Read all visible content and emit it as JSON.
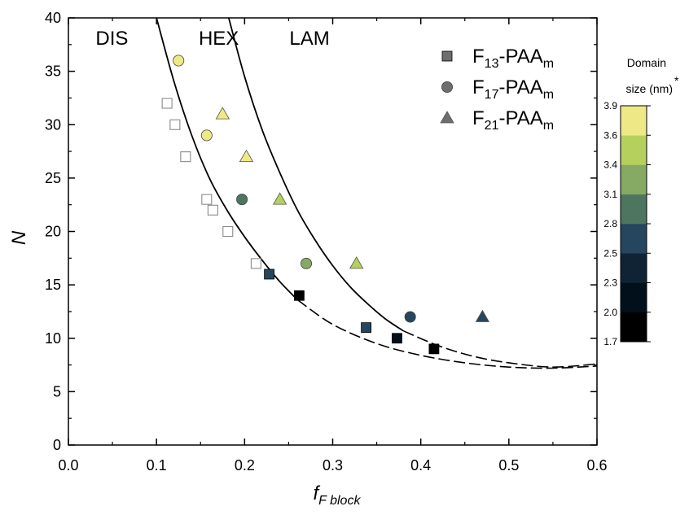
{
  "chart_data": {
    "type": "scatter",
    "xlabel": "f",
    "xlabel_sub": "F block",
    "ylabel": "N",
    "xlim": [
      0.0,
      0.6
    ],
    "ylim": [
      0,
      40
    ],
    "xticks": [
      "0.0",
      "0.1",
      "0.2",
      "0.3",
      "0.4",
      "0.5",
      "0.6"
    ],
    "yticks": [
      "0",
      "5",
      "10",
      "15",
      "20",
      "25",
      "30",
      "35",
      "40"
    ],
    "grid": false,
    "legend_position": "top-right",
    "regions": [
      "DIS",
      "HEX",
      "LAM"
    ],
    "series": [
      {
        "name": "F13-PAAm",
        "label_base": "F",
        "label_sub": "13",
        "label_mid": "-PAA",
        "label_sub2": "m",
        "marker": "square",
        "points": [
          {
            "x": 0.228,
            "y": 16,
            "d": 2.5
          },
          {
            "x": 0.262,
            "y": 14,
            "d": 1.7
          },
          {
            "x": 0.338,
            "y": 11,
            "d": 2.5
          },
          {
            "x": 0.373,
            "y": 10,
            "d": 2.0
          },
          {
            "x": 0.415,
            "y": 9,
            "d": 1.7
          }
        ]
      },
      {
        "name": "F17-PAAm",
        "label_base": "F",
        "label_sub": "17",
        "label_mid": "-PAA",
        "label_sub2": "m",
        "marker": "circle",
        "points": [
          {
            "x": 0.125,
            "y": 36,
            "d": 3.9
          },
          {
            "x": 0.157,
            "y": 29,
            "d": 3.6
          },
          {
            "x": 0.197,
            "y": 23,
            "d": 2.8
          },
          {
            "x": 0.27,
            "y": 17,
            "d": 3.1
          },
          {
            "x": 0.388,
            "y": 12,
            "d": 2.5
          }
        ]
      },
      {
        "name": "F21-PAAm",
        "label_base": "F",
        "label_sub": "21",
        "label_mid": "-PAA",
        "label_sub2": "m",
        "marker": "triangle",
        "points": [
          {
            "x": 0.175,
            "y": 31,
            "d": 3.9
          },
          {
            "x": 0.202,
            "y": 27,
            "d": 3.9
          },
          {
            "x": 0.24,
            "y": 23,
            "d": 3.4
          },
          {
            "x": 0.327,
            "y": 17,
            "d": 3.4
          },
          {
            "x": 0.47,
            "y": 12,
            "d": 2.5
          }
        ]
      },
      {
        "name": "disordered",
        "marker": "open-square",
        "points": [
          {
            "x": 0.112,
            "y": 32
          },
          {
            "x": 0.121,
            "y": 30
          },
          {
            "x": 0.133,
            "y": 27
          },
          {
            "x": 0.157,
            "y": 23
          },
          {
            "x": 0.164,
            "y": 22
          },
          {
            "x": 0.181,
            "y": 20
          },
          {
            "x": 0.213,
            "y": 17
          }
        ]
      }
    ],
    "boundaries": [
      {
        "name": "DIS-HEX",
        "solid": [
          [
            0.1,
            40
          ],
          [
            0.12,
            34
          ],
          [
            0.14,
            29
          ],
          [
            0.16,
            25
          ],
          [
            0.18,
            22
          ],
          [
            0.2,
            19.5
          ],
          [
            0.22,
            17.3
          ],
          [
            0.24,
            15.3
          ],
          [
            0.26,
            13.6
          ]
        ],
        "dashed": [
          [
            0.26,
            13.6
          ],
          [
            0.3,
            11.3
          ],
          [
            0.35,
            9.5
          ],
          [
            0.4,
            8.4
          ],
          [
            0.45,
            7.7
          ],
          [
            0.5,
            7.3
          ],
          [
            0.55,
            7.2
          ],
          [
            0.6,
            7.4
          ]
        ]
      },
      {
        "name": "HEX-LAM",
        "solid": [
          [
            0.182,
            40
          ],
          [
            0.2,
            34.5
          ],
          [
            0.22,
            29.5
          ],
          [
            0.24,
            25.5
          ],
          [
            0.26,
            22
          ],
          [
            0.28,
            19.2
          ],
          [
            0.3,
            16.8
          ],
          [
            0.32,
            14.8
          ],
          [
            0.34,
            13.2
          ],
          [
            0.36,
            11.8
          ],
          [
            0.38,
            10.7
          ]
        ],
        "dashed": [
          [
            0.38,
            10.7
          ],
          [
            0.42,
            9.3
          ],
          [
            0.46,
            8.3
          ],
          [
            0.5,
            7.7
          ],
          [
            0.55,
            7.3
          ],
          [
            0.6,
            7.6
          ]
        ]
      }
    ],
    "colorbar": {
      "title_line1": "Domain",
      "title_line2": "size (nm)",
      "star": "*",
      "ticks": [
        "1.7",
        "2.0",
        "2.3",
        "2.5",
        "2.8",
        "3.1",
        "3.4",
        "3.6",
        "3.9"
      ],
      "colors": [
        "#000000",
        "#02101c",
        "#0f2335",
        "#25465e",
        "#4d7560",
        "#86a963",
        "#b6d05e",
        "#eee987"
      ]
    }
  }
}
